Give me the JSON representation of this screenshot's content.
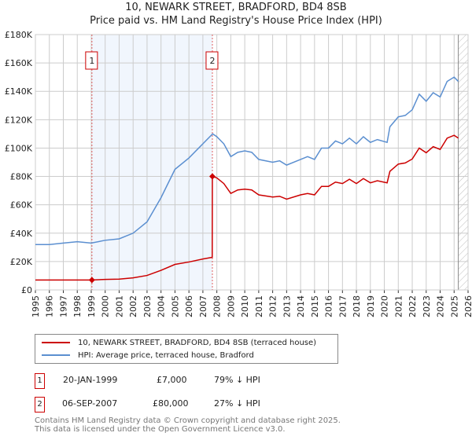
{
  "chart_data": {
    "type": "line",
    "title": "10, NEWARK STREET, BRADFORD, BD4 8SB",
    "subtitle": "Price paid vs. HM Land Registry's House Price Index (HPI)",
    "xlim": [
      1995,
      2026
    ],
    "ylim": [
      0,
      180000
    ],
    "x_ticks": [
      "1995",
      "1996",
      "1997",
      "1998",
      "1999",
      "2000",
      "2001",
      "2002",
      "2003",
      "2004",
      "2005",
      "2006",
      "2007",
      "2008",
      "2009",
      "2010",
      "2011",
      "2012",
      "2013",
      "2014",
      "2015",
      "2016",
      "2017",
      "2018",
      "2019",
      "2020",
      "2021",
      "2022",
      "2023",
      "2024",
      "2025",
      "2026"
    ],
    "y_ticks": [
      {
        "v": 0,
        "label": "£0"
      },
      {
        "v": 20000,
        "label": "£20K"
      },
      {
        "v": 40000,
        "label": "£40K"
      },
      {
        "v": 60000,
        "label": "£60K"
      },
      {
        "v": 80000,
        "label": "£80K"
      },
      {
        "v": 100000,
        "label": "£100K"
      },
      {
        "v": 120000,
        "label": "£120K"
      },
      {
        "v": 140000,
        "label": "£140K"
      },
      {
        "v": 160000,
        "label": "£160K"
      },
      {
        "v": 180000,
        "label": "£180K"
      }
    ],
    "grid": true,
    "series": [
      {
        "name": "10, NEWARK STREET, BRADFORD, BD4 8SB (terraced house)",
        "color": "#cc0000",
        "x": [
          1995,
          1999.05,
          2000,
          2001,
          2002,
          2003,
          2004,
          2005,
          2006,
          2007,
          2007.67,
          2007.68,
          2008,
          2008.5,
          2009,
          2009.5,
          2010,
          2010.5,
          2011,
          2012,
          2012.5,
          2013,
          2014,
          2014.5,
          2015,
          2015.5,
          2016,
          2016.5,
          2017,
          2017.5,
          2018,
          2018.5,
          2019,
          2019.5,
          2020.2,
          2020.4,
          2021,
          2021.5,
          2022,
          2022.5,
          2023,
          2023.5,
          2024,
          2024.5,
          2025,
          2025.3
        ],
        "y": [
          7000,
          7000,
          7400,
          7600,
          8500,
          10200,
          13800,
          18000,
          19700,
          21800,
          23000,
          80000,
          79000,
          75000,
          68000,
          70500,
          71000,
          70500,
          67000,
          65500,
          66000,
          64000,
          67000,
          68000,
          67000,
          73000,
          73000,
          76000,
          75000,
          78000,
          75000,
          78500,
          75500,
          77000,
          75500,
          83600,
          88700,
          89500,
          92300,
          100000,
          96700,
          101000,
          99000,
          107000,
          109000,
          107000
        ]
      },
      {
        "name": "HPI: Average price, terraced house, Bradford",
        "color": "#5b8fd0",
        "x": [
          1995,
          1996,
          1997,
          1998,
          1999,
          2000,
          2001,
          2002,
          2003,
          2004,
          2005,
          2006,
          2007,
          2007.7,
          2008,
          2008.5,
          2009,
          2009.5,
          2010,
          2010.5,
          2011,
          2012,
          2012.5,
          2013,
          2014,
          2014.5,
          2015,
          2015.5,
          2016,
          2016.5,
          2017,
          2017.5,
          2018,
          2018.5,
          2019,
          2019.5,
          2020.2,
          2020.4,
          2021,
          2021.5,
          2022,
          2022.5,
          2023,
          2023.5,
          2024,
          2024.5,
          2025,
          2025.3
        ],
        "y": [
          32000,
          32000,
          33000,
          34000,
          33000,
          35000,
          36000,
          40000,
          48000,
          65000,
          85000,
          93000,
          103000,
          110000,
          108000,
          103000,
          94000,
          97000,
          98000,
          97000,
          92000,
          90000,
          91000,
          88000,
          92000,
          94000,
          92000,
          100000,
          100000,
          105000,
          103000,
          107000,
          103000,
          108000,
          104000,
          106000,
          104000,
          115000,
          122000,
          123000,
          127000,
          138000,
          133000,
          139000,
          136000,
          147000,
          150000,
          147000
        ]
      }
    ],
    "sales": [
      {
        "n": "1",
        "x": 1999.05,
        "y": 7000,
        "date": "20-JAN-1999",
        "price": "£7,000",
        "hpi": "79% ↓ HPI"
      },
      {
        "n": "2",
        "x": 2007.68,
        "y": 80000,
        "date": "06-SEP-2007",
        "price": "£80,000",
        "hpi": "27% ↓ HPI"
      }
    ],
    "forecast_from": 2025.3,
    "legend_position": "below"
  },
  "footer": {
    "line1": "Contains HM Land Registry data © Crown copyright and database right 2025.",
    "line2": "This data is licensed under the Open Government Licence v3.0."
  }
}
